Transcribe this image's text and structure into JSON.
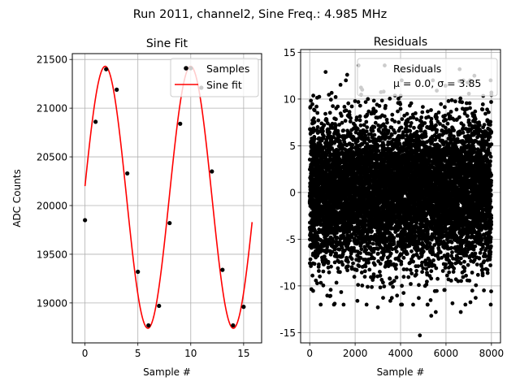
{
  "suptitle": "Run 2011, channel2, Sine Freq.: 4.985 MHz",
  "colors": {
    "fit": "#ff0000",
    "points": "#000000",
    "grid": "#b0b0b0",
    "axis": "#000000",
    "background": "#ffffff"
  },
  "chart_data": [
    {
      "type": "line",
      "title": "Sine Fit",
      "xlabel": "Sample #",
      "ylabel": "ADC Counts",
      "xlim": [
        -1.2,
        16.7
      ],
      "ylim": [
        18590,
        21560
      ],
      "xticks": [
        0,
        5,
        10,
        15
      ],
      "yticks": [
        19000,
        19500,
        20000,
        20500,
        21000,
        21500
      ],
      "grid": true,
      "legend_position": "top-right",
      "series": [
        {
          "name": "Samples",
          "kind": "scatter",
          "x": [
            0,
            1,
            2,
            3,
            4,
            5,
            6,
            7,
            8,
            9,
            10,
            11,
            12,
            13,
            14,
            15
          ],
          "y": [
            19850,
            20860,
            21400,
            21190,
            20330,
            19320,
            18770,
            18970,
            19820,
            20840,
            21410,
            21210,
            20350,
            19340,
            18770,
            18960
          ]
        },
        {
          "name": "Sine fit",
          "kind": "line",
          "model": "A*sin(2*pi*f*x + phi) + C",
          "amplitude": 1345,
          "frequency_cycles_per_sample": 0.1238,
          "phase_rad": 0.0855,
          "offset": 20085,
          "x_range": [
            0,
            15.8
          ]
        }
      ]
    },
    {
      "type": "scatter",
      "title": "Residuals",
      "xlabel": "Sample #",
      "ylabel": "",
      "xlim": [
        -400,
        8399
      ],
      "ylim": [
        -16.1,
        15.3
      ],
      "xticks": [
        0,
        2000,
        4000,
        6000,
        8000
      ],
      "yticks": [
        -15,
        -10,
        -5,
        0,
        5,
        10,
        15
      ],
      "grid": true,
      "legend_position": "top-right",
      "legend_label": "Residuals",
      "stats_text": "μ = 0.0, σ = 3.85",
      "series": [
        {
          "name": "Residuals",
          "n_points": 8000,
          "distribution": "normal",
          "mean": 0.0,
          "std": 3.85,
          "highlights": [
            {
              "x": 4850,
              "y": -15.3
            },
            {
              "x": 2150,
              "y": 13.6
            },
            {
              "x": 3300,
              "y": 13.6
            },
            {
              "x": 6600,
              "y": 13.2
            },
            {
              "x": 700,
              "y": 12.9
            },
            {
              "x": 7250,
              "y": 12.5
            },
            {
              "x": 1650,
              "y": 12.6
            },
            {
              "x": 5350,
              "y": -13.2
            },
            {
              "x": 5550,
              "y": -12.8
            },
            {
              "x": 6650,
              "y": -12.8
            },
            {
              "x": 3000,
              "y": -12.3
            },
            {
              "x": 2100,
              "y": -11.6
            },
            {
              "x": 3550,
              "y": -11.6
            },
            {
              "x": 1100,
              "y": -11.9
            }
          ]
        }
      ]
    }
  ]
}
